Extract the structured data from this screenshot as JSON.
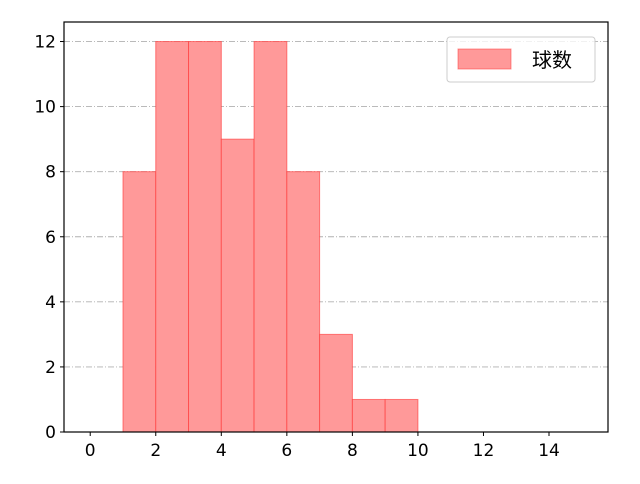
{
  "chart_data": {
    "type": "bar",
    "histogram": true,
    "bin_edges": [
      1,
      2,
      3,
      4,
      5,
      6,
      7,
      8,
      9,
      10
    ],
    "series": [
      {
        "name": "球数",
        "values": [
          8,
          12,
          12,
          9,
          12,
          8,
          3,
          1,
          1
        ],
        "color": "#ff9999",
        "edge_color": "#ff3333"
      }
    ],
    "xlim": [
      -0.8,
      15.8
    ],
    "ylim": [
      0,
      12.6
    ],
    "xticks": [
      0,
      2,
      4,
      6,
      8,
      10,
      12,
      14
    ],
    "yticks": [
      0,
      2,
      4,
      6,
      8,
      10,
      12
    ],
    "grid": {
      "axis": "y",
      "style": "dash-dot",
      "color": "#b0b0b0"
    },
    "legend": {
      "position": "top-right",
      "entries": [
        "球数"
      ]
    },
    "title": "",
    "xlabel": "",
    "ylabel": ""
  }
}
